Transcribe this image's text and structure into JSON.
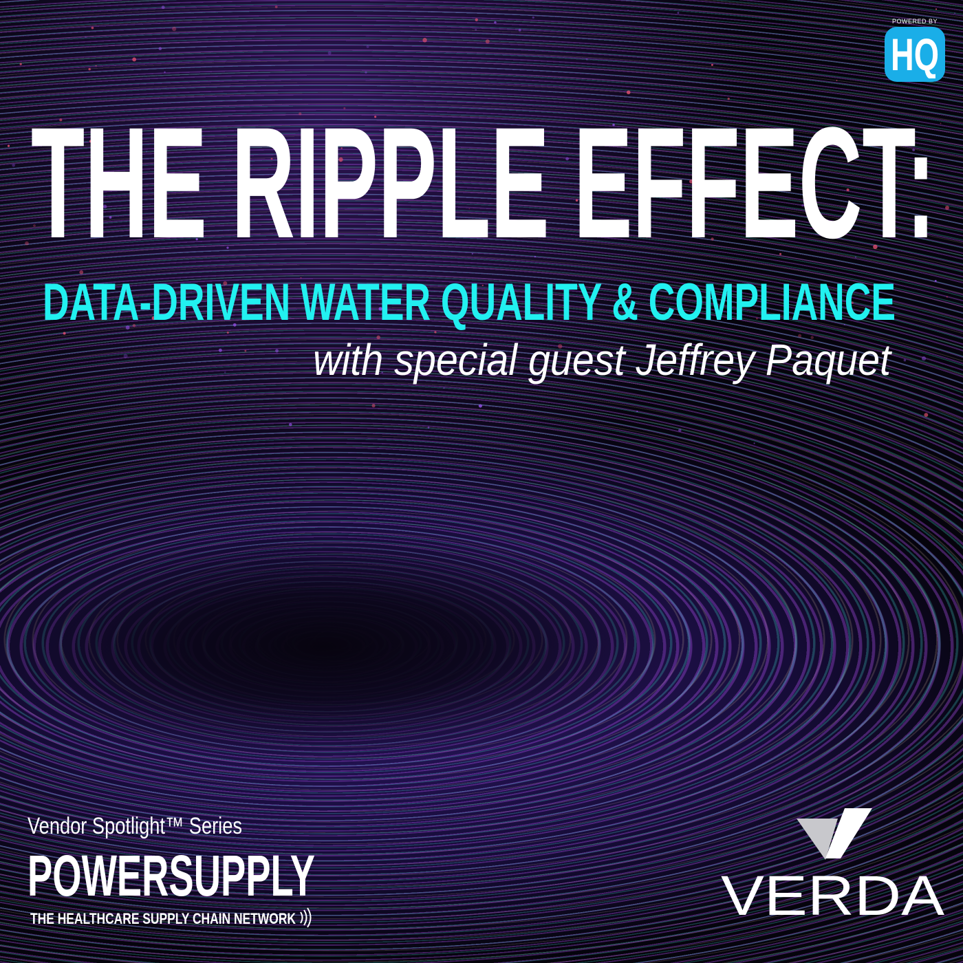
{
  "badge": {
    "powered_by": "POWERED BY",
    "logo": "HQ",
    "color": "#1aaee8"
  },
  "title": "THE RIPPLE EFFECT:",
  "subtitle": "DATA-DRIVEN WATER QUALITY & COMPLIANCE",
  "guest_line": "with special guest Jeffrey Paquet",
  "series": {
    "label": "Vendor Spotlight™ Series",
    "brand": "POWERSUPPLY",
    "tagline": "THE HEALTHCARE SUPPLY CHAIN NETWORK"
  },
  "sponsor": {
    "name": "VERDA"
  },
  "colors": {
    "title": "#ffffff",
    "subtitle": "#22f0f0",
    "accent_purple": "#a040e0",
    "accent_teal": "#30c8c0"
  }
}
